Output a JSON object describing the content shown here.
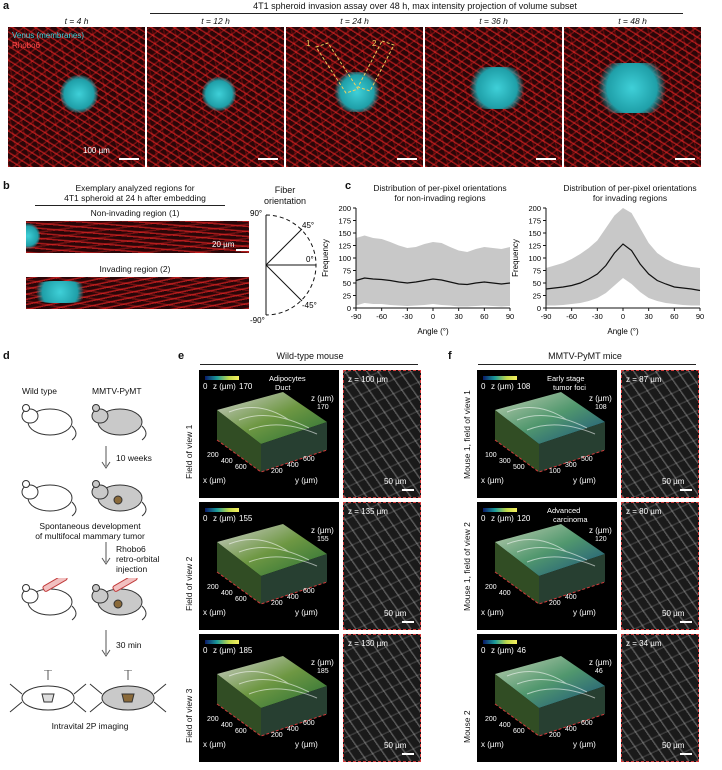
{
  "panels": {
    "a": {
      "label": "a",
      "title": "4T1 spheroid invasion assay over 48 h, max intensity projection of volume subset",
      "timepoints": [
        "t = 4 h",
        "t = 12 h",
        "t = 24 h",
        "t = 36 h",
        "t = 48 h"
      ],
      "legend_venus": "Venus (membranes)",
      "legend_rhobo": "Rhobo6",
      "scalebar": "100 µm",
      "region_1": "1",
      "region_2": "2",
      "colors": {
        "venus": "#3fd0d8",
        "rhobo": "#e02a2a"
      }
    },
    "b": {
      "label": "b",
      "title_line1": "Exemplary analyzed regions for",
      "title_line2": "4T1 spheroid at 24 h after embedding",
      "non_invading": "Non-invading region (1)",
      "invading": "Invading region (2)",
      "scalebar": "20 µm",
      "fiber_line1": "Fiber",
      "fiber_line2": "orientation",
      "angles": [
        "90°",
        "45°",
        "0°",
        "-45°",
        "-90°"
      ]
    },
    "c": {
      "label": "c",
      "left_title_line1": "Distribution of per-pixel orientations",
      "left_title_line2": "for non-invading regions",
      "right_title_line1": "Distribution of per-pixel orientations",
      "right_title_line2": "for invading regions",
      "ylabel": "Frequency",
      "xlabel": "Angle (°)"
    },
    "d": {
      "label": "d",
      "wild_type": "Wild type",
      "mmtv": "MMTV-PyMT",
      "step1": "10 weeks",
      "step2_line1": "Spontaneous development",
      "step2_line2": "of multifocal mammary tumor",
      "step3_line1": "Rhobo6",
      "step3_line2": "retro-orbital",
      "step3_line3": "injection",
      "step4": "30 min",
      "step5": "Intravital 2P imaging"
    },
    "e": {
      "label": "e",
      "header": "Wild-type mouse",
      "rows": [
        {
          "side": "Field of view 1",
          "zmax": "170",
          "zlabel": "z (µm)",
          "zmin": "0",
          "slice": "z = 100 µm",
          "scalebar": "50 µm",
          "ann1": "Adipocytes",
          "ann2": "Duct",
          "xticks": [
            "200",
            "400",
            "600"
          ],
          "yticks": [
            "200",
            "400",
            "600"
          ]
        },
        {
          "side": "Field of view 2",
          "zmax": "155",
          "zlabel": "z (µm)",
          "zmin": "0",
          "slice": "z = 135 µm",
          "scalebar": "50 µm",
          "xticks": [
            "200",
            "400",
            "600"
          ],
          "yticks": [
            "200",
            "400",
            "600"
          ]
        },
        {
          "side": "Field of view 3",
          "zmax": "185",
          "zlabel": "z (µm)",
          "zmin": "0",
          "slice": "z = 130 µm",
          "scalebar": "50 µm",
          "xticks": [
            "200",
            "400",
            "600"
          ],
          "yticks": [
            "200",
            "400",
            "600"
          ]
        }
      ],
      "x_axis": "x (µm)",
      "y_axis": "y (µm)"
    },
    "f": {
      "label": "f",
      "header": "MMTV-PyMT mice",
      "rows": [
        {
          "side": "Mouse 1, field of view 1",
          "zmax": "108",
          "zlabel": "z (µm)",
          "zmin": "0",
          "slice": "z = 87 µm",
          "scalebar": "50 µm",
          "ann1": "Early stage",
          "ann2": "tumor foci",
          "xticks": [
            "100",
            "300",
            "500"
          ],
          "yticks": [
            "100",
            "300",
            "500"
          ]
        },
        {
          "side": "Mouse 1, field of view 2",
          "zmax": "120",
          "zlabel": "z (µm)",
          "zmin": "0",
          "slice": "z = 80 µm",
          "scalebar": "50 µm",
          "ann1": "Advanced",
          "ann2": "carcinoma",
          "xticks": [
            "200",
            "400"
          ],
          "yticks": [
            "200",
            "400"
          ]
        },
        {
          "side": "Mouse 2",
          "zmax": "46",
          "zlabel": "z (µm)",
          "zmin": "0",
          "slice": "z = 34 µm",
          "scalebar": "50 µm",
          "xticks": [
            "200",
            "400",
            "600"
          ],
          "yticks": [
            "200",
            "400",
            "600"
          ]
        }
      ],
      "x_axis": "x (µm)",
      "y_axis": "y (µm)"
    }
  },
  "chart_data": [
    {
      "type": "line",
      "title": "Distribution of per-pixel orientations for non-invading regions",
      "xlabel": "Angle (°)",
      "ylabel": "Frequency",
      "xlim": [
        -90,
        90
      ],
      "ylim": [
        0,
        200
      ],
      "xticks": [
        -90,
        -60,
        -30,
        0,
        30,
        60,
        90
      ],
      "yticks": [
        0,
        25,
        50,
        75,
        100,
        125,
        150,
        175,
        200
      ],
      "x": [
        -90,
        -80,
        -70,
        -60,
        -50,
        -40,
        -30,
        -20,
        -10,
        0,
        10,
        20,
        30,
        40,
        50,
        60,
        70,
        80,
        90
      ],
      "mean": [
        55,
        60,
        58,
        57,
        55,
        52,
        50,
        52,
        55,
        58,
        56,
        52,
        48,
        47,
        50,
        52,
        50,
        48,
        50
      ],
      "upper": [
        140,
        145,
        140,
        138,
        132,
        125,
        120,
        122,
        128,
        132,
        130,
        122,
        115,
        112,
        118,
        122,
        120,
        118,
        122
      ],
      "lower": [
        5,
        10,
        8,
        8,
        6,
        5,
        4,
        5,
        6,
        8,
        6,
        5,
        3,
        3,
        4,
        5,
        4,
        3,
        4
      ],
      "colors": {
        "mean": "#111111",
        "band": "#c8c8c8"
      }
    },
    {
      "type": "line",
      "title": "Distribution of per-pixel orientations for invading regions",
      "xlabel": "Angle (°)",
      "ylabel": "Frequency",
      "xlim": [
        -90,
        90
      ],
      "ylim": [
        0,
        200
      ],
      "xticks": [
        -90,
        -60,
        -30,
        0,
        30,
        60,
        90
      ],
      "yticks": [
        0,
        25,
        50,
        75,
        100,
        125,
        150,
        175,
        200
      ],
      "x": [
        -90,
        -80,
        -70,
        -60,
        -50,
        -40,
        -30,
        -20,
        -10,
        0,
        10,
        20,
        30,
        40,
        50,
        60,
        70,
        80,
        90
      ],
      "mean": [
        38,
        40,
        42,
        45,
        50,
        58,
        68,
        85,
        110,
        128,
        115,
        88,
        68,
        55,
        48,
        42,
        40,
        38,
        35
      ],
      "upper": [
        80,
        85,
        90,
        98,
        108,
        120,
        135,
        160,
        185,
        200,
        190,
        160,
        130,
        110,
        98,
        90,
        85,
        82,
        80
      ],
      "lower": [
        5,
        5,
        6,
        8,
        10,
        14,
        20,
        30,
        45,
        60,
        48,
        32,
        20,
        14,
        10,
        8,
        6,
        5,
        5
      ],
      "colors": {
        "mean": "#111111",
        "band": "#c8c8c8"
      }
    }
  ]
}
